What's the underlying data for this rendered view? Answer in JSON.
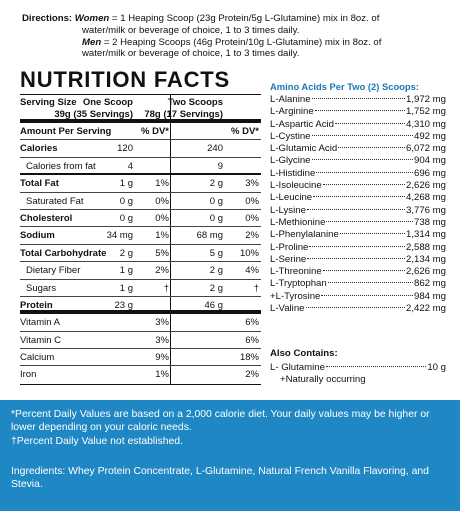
{
  "directions": {
    "label": "Directions:",
    "women_label": "Women",
    "women_text": " = 1 Heaping Scoop (23g Protein/5g L-Glutamine) mix in 8oz. of",
    "women_text2": "water/milk or beverage of choice, 1 to 3 times daily.",
    "men_label": "Men",
    "men_text": " = 2 Heaping Scoops (46g Protein/10g L-Glutamine) mix in 8oz. of",
    "men_text2": "water/milk or beverage of choice, 1 to 3 times daily."
  },
  "nutrition": {
    "title": "NUTRITION FACTS",
    "serving_size_label": "Serving Size",
    "col1_head": "One Scoop",
    "col1_sub": "39g (35 Servings)",
    "col2_head": "Two Scoops",
    "col2_sub": "78g (17 Servings)",
    "amount_label": "Amount Per Serving",
    "dv_label": "% DV*",
    "dv_label2": "% DV*",
    "rows": [
      {
        "name": "Calories",
        "v1": "120",
        "d1": "",
        "v2": "240",
        "d2": ""
      },
      {
        "name": "Calories from fat",
        "v1": "4",
        "d1": "",
        "v2": "9",
        "d2": ""
      },
      {
        "name": "Total Fat",
        "v1": "1 g",
        "d1": "1%",
        "v2": "2 g",
        "d2": "3%"
      },
      {
        "name": "Saturated Fat",
        "v1": "0 g",
        "d1": "0%",
        "v2": "0 g",
        "d2": "0%"
      },
      {
        "name": "Cholesterol",
        "v1": "0 g",
        "d1": "0%",
        "v2": "0 g",
        "d2": "0%"
      },
      {
        "name": "Sodium",
        "v1": "34 mg",
        "d1": "1%",
        "v2": "68 mg",
        "d2": "2%"
      },
      {
        "name": "Total Carbohydrate",
        "v1": "2 g",
        "d1": "5%",
        "v2": "5 g",
        "d2": "10%"
      },
      {
        "name": "Dietary Fiber",
        "v1": "1 g",
        "d1": "2%",
        "v2": "2 g",
        "d2": "4%"
      },
      {
        "name": "Sugars",
        "v1": "1 g",
        "d1": "†",
        "v2": "2 g",
        "d2": "†"
      },
      {
        "name": "Protein",
        "v1": "23 g",
        "d1": "",
        "v2": "46 g",
        "d2": ""
      },
      {
        "name": "Vitamin A",
        "v1": "",
        "d1": "3%",
        "v2": "",
        "d2": "6%"
      },
      {
        "name": "Vitamin C",
        "v1": "",
        "d1": "3%",
        "v2": "",
        "d2": "6%"
      },
      {
        "name": "Calcium",
        "v1": "",
        "d1": "9%",
        "v2": "",
        "d2": "18%"
      },
      {
        "name": "Iron",
        "v1": "",
        "d1": "1%",
        "v2": "",
        "d2": "2%"
      }
    ]
  },
  "amino": {
    "title": "Amino Acids Per Two (2) Scoops:",
    "items": [
      {
        "name": "L-Alanine",
        "value": "1,972 mg"
      },
      {
        "name": "L-Arginine",
        "value": "1,752 mg"
      },
      {
        "name": "L-Aspartic Acid",
        "value": "4,310 mg"
      },
      {
        "name": "L-Cystine",
        "value": "492 mg"
      },
      {
        "name": "L-Glutamic Acid",
        "value": "6,072 mg"
      },
      {
        "name": "L-Glycine",
        "value": "904 mg"
      },
      {
        "name": "L-Histidine",
        "value": "696 mg"
      },
      {
        "name": "L-Isoleucine",
        "value": "2,626 mg"
      },
      {
        "name": "L-Leucine",
        "value": "4,268 mg"
      },
      {
        "name": "L-Lysine",
        "value": "3,776 mg"
      },
      {
        "name": "L-Methionine",
        "value": "738 mg"
      },
      {
        "name": "L-Phenylalanine",
        "value": "1,314 mg"
      },
      {
        "name": "L-Proline",
        "value": "2,588 mg"
      },
      {
        "name": "L-Serine",
        "value": "2,134 mg"
      },
      {
        "name": "L-Threonine",
        "value": "2,626 mg"
      },
      {
        "name": "L-Tryptophan",
        "value": "862 mg"
      },
      {
        "name": "+L-Tyrosine",
        "value": "984 mg"
      },
      {
        "name": "L-Valine",
        "value": "2,422 mg"
      }
    ]
  },
  "also_contains": {
    "title": "Also Contains:",
    "item_name": "L- Glutamine",
    "item_value": "10 g",
    "note": "+Naturally occurring"
  },
  "footnotes": {
    "line1": "*Percent Daily Values are based on a 2,000 calorie diet. Your daily values may be higher or lower depending on your caloric needs.",
    "line2": "†Percent Daily Value not established."
  },
  "ingredients": "Ingredients: Whey Protein Concentrate, L-Glutamine, Natural French Vanilla Flavoring, and Stevia.",
  "colors": {
    "footer_bg": "#1f88c4",
    "amino_title": "#1a77b5"
  }
}
